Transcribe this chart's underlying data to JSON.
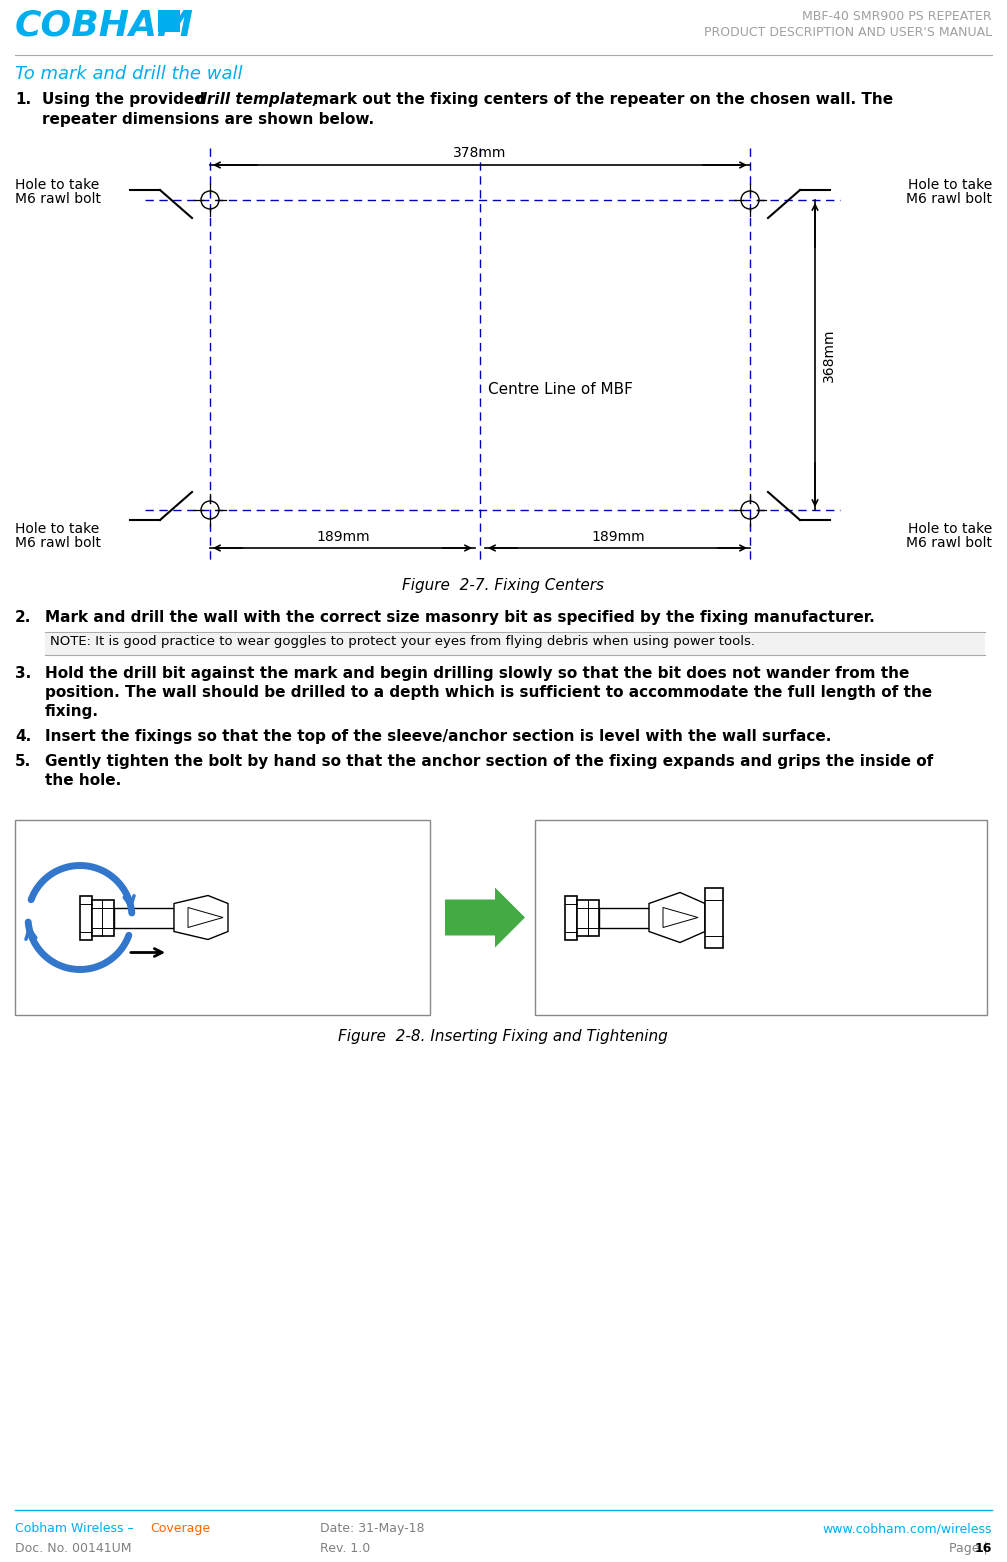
{
  "title_line1": "MBF-40 SMR900 PS REPEATER",
  "title_line2": "PRODUCT DESCRIPTION AND USER'S MANUAL",
  "section_title": "To mark and drill the wall",
  "cobham_color": "#00AEEF",
  "title_color": "#A0A0A0",
  "text_color": "#000000",
  "footer_cobham": "Cobham Wireless – ",
  "footer_coverage": "Coverage",
  "footer_line1_mid": "Date: 31-May-18",
  "footer_line1_right": "www.cobham.com/wireless",
  "footer_line2_left": "Doc. No. 00141UM",
  "footer_line2_mid": "Rev. 1.0",
  "footer_line2_right": "Page | 16",
  "diagram_caption": "Figure  2-7. Fixing Centers",
  "diagram2_caption": "Figure  2-8. Inserting Fixing and Tightening",
  "note_text": "NOTE: It is good practice to wear goggles to protect your eyes from flying debris when using power tools.",
  "step2_text": "Mark and drill the wall with the correct size masonry bit as specified by the fixing manufacturer.",
  "step3_line1": "Hold the drill bit against the mark and begin drilling slowly so that the bit does not wander from the",
  "step3_line2": "position. The wall should be drilled to a depth which is sufficient to accommodate the full length of the",
  "step3_line3": "fixing.",
  "step4_text": "Insert the fixings so that the top of the sleeve/anchor section is level with the wall surface.",
  "step5_line1": "Gently tighten the bolt by hand so that the anchor section of the fixing expands and grips the inside of",
  "step5_line2": "the hole.",
  "dim_378": "378mm",
  "dim_368": "368mm",
  "dim_189L": "189mm",
  "dim_189R": "189mm",
  "label_hole_TL1": "Hole to take",
  "label_hole_TL2": "M6 rawl bolt",
  "label_hole_TR1": "Hole to take",
  "label_hole_TR2": "M6 rawl bolt",
  "label_hole_BL1": "Hole to take",
  "label_hole_BL2": "M6 rawl bolt",
  "label_hole_BR1": "Hole to take",
  "label_hole_BR2": "M6 rawl bolt",
  "label_centre": "Centre Line of MBF",
  "blue_dash": "#0000BB",
  "diagram_color": "#000000",
  "blue_arrow": "#3377CC",
  "green_arrow": "#44AA44",
  "orange_color": "#FF6600"
}
